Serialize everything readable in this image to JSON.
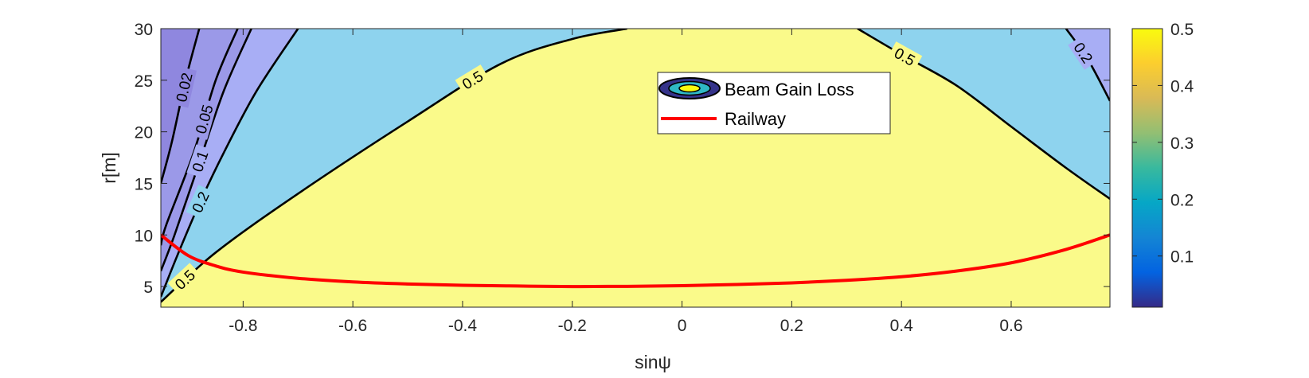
{
  "chart_data": {
    "type": "contour",
    "xlabel": "sinψ",
    "ylabel": "r[m]",
    "xlim": [
      -0.95,
      0.78
    ],
    "ylim": [
      3,
      30
    ],
    "xticks": [
      "-0.8",
      "-0.6",
      "-0.4",
      "-0.2",
      "0",
      "0.2",
      "0.4",
      "0.6"
    ],
    "yticks": [
      "5",
      "10",
      "15",
      "20",
      "25",
      "30"
    ],
    "legend": {
      "placement": "top-center",
      "entries": [
        "Beam Gain Loss",
        "Railway"
      ]
    },
    "colorbar": {
      "ticks": [
        "0.1",
        "0.2",
        "0.3",
        "0.4",
        "0.5"
      ],
      "range": [
        0.01,
        0.5
      ],
      "colormap": "parula"
    },
    "contour_levels": [
      {
        "level": 0.02,
        "label": "0.02",
        "fill": "#8f87df",
        "curve": [
          [
            -0.88,
            30
          ],
          [
            -0.905,
            25
          ],
          [
            -0.93,
            19
          ],
          [
            -0.95,
            15
          ]
        ]
      },
      {
        "level": 0.05,
        "label": "0.05",
        "fill": "#9b99e8",
        "curve": [
          [
            -0.81,
            30
          ],
          [
            -0.85,
            25
          ],
          [
            -0.89,
            18
          ],
          [
            -0.94,
            11
          ],
          [
            -0.95,
            9
          ]
        ]
      },
      {
        "level": 0.1,
        "label": "0.1",
        "fill": "#a8aef5",
        "curve": [
          [
            -0.785,
            30
          ],
          [
            -0.835,
            24
          ],
          [
            -0.88,
            17
          ],
          [
            -0.925,
            10
          ],
          [
            -0.95,
            6.5
          ]
        ]
      },
      {
        "level": 0.2,
        "label": "0.2",
        "fill": "#8ed3ee",
        "curve": [
          [
            -0.7,
            30
          ],
          [
            -0.775,
            24
          ],
          [
            -0.835,
            18
          ],
          [
            -0.88,
            13
          ],
          [
            -0.92,
            8
          ],
          [
            -0.95,
            4
          ]
        ]
      },
      {
        "level": 0.5,
        "label": "0.5",
        "fill": "#fafa8a",
        "curve": [
          [
            -0.95,
            3.5
          ],
          [
            -0.85,
            8.3
          ],
          [
            -0.7,
            14
          ],
          [
            -0.5,
            21
          ],
          [
            -0.33,
            26.6
          ],
          [
            -0.2,
            29
          ],
          [
            -0.1,
            30
          ]
        ]
      },
      {
        "level": 0.5,
        "label": "0.5",
        "fill": "#fafa8a",
        "curve": [
          [
            0.32,
            30
          ],
          [
            0.4,
            27.5
          ],
          [
            0.5,
            24.5
          ],
          [
            0.6,
            20.5
          ],
          [
            0.7,
            16.5
          ],
          [
            0.78,
            13.5
          ]
        ]
      },
      {
        "level": 0.2,
        "label": "0.2",
        "fill": "#a8aef5",
        "curve": [
          [
            0.7,
            30
          ],
          [
            0.74,
            27
          ],
          [
            0.78,
            23
          ]
        ]
      }
    ],
    "series": [
      {
        "name": "Railway",
        "color": "#ff0000",
        "x": [
          -0.95,
          -0.9,
          -0.85,
          -0.8,
          -0.7,
          -0.6,
          -0.5,
          -0.4,
          -0.3,
          -0.2,
          -0.1,
          0,
          0.1,
          0.2,
          0.3,
          0.4,
          0.5,
          0.6,
          0.7,
          0.78
        ],
        "y": [
          10,
          8.0,
          7.0,
          6.4,
          5.8,
          5.45,
          5.25,
          5.12,
          5.05,
          5.0,
          5.02,
          5.08,
          5.2,
          5.35,
          5.6,
          5.95,
          6.5,
          7.3,
          8.6,
          10
        ]
      }
    ]
  }
}
